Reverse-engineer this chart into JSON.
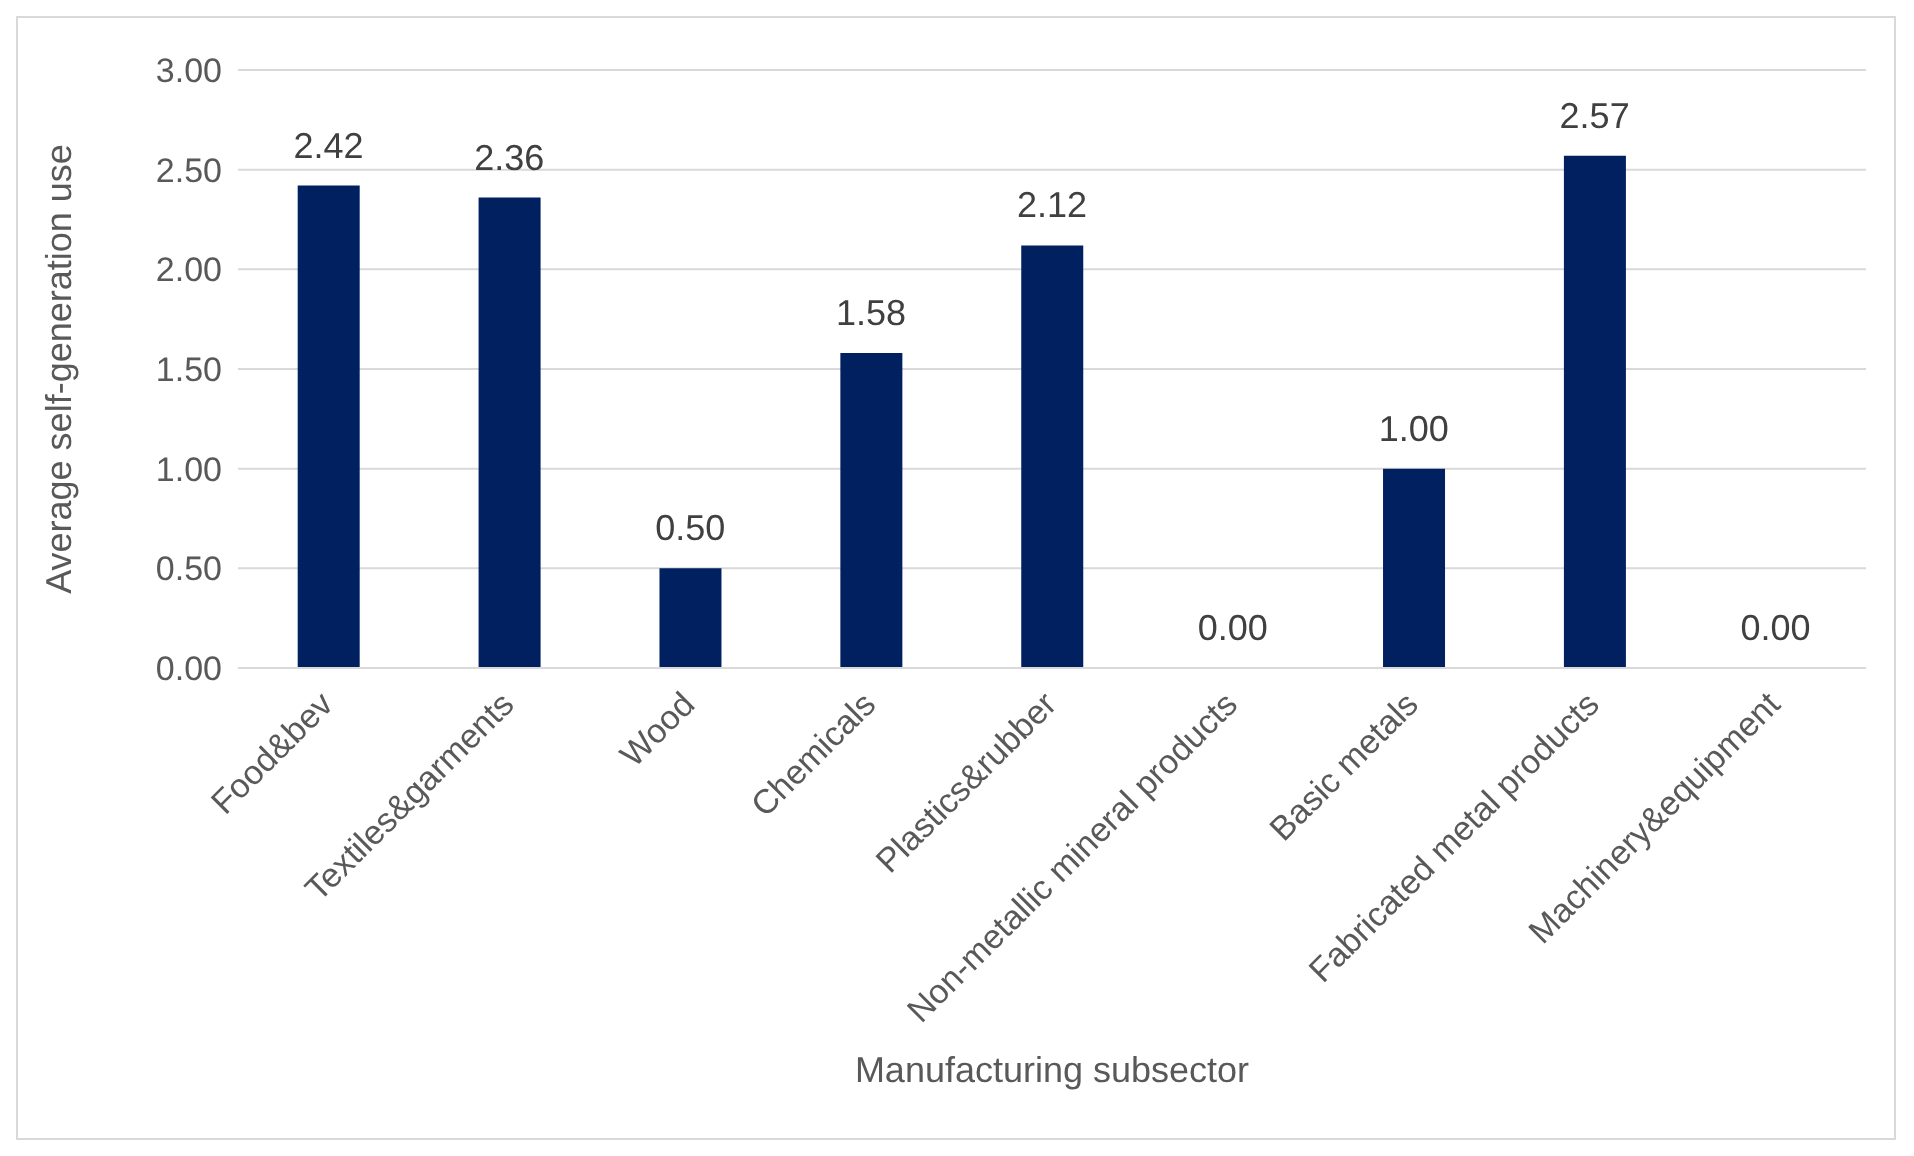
{
  "chart_data": {
    "type": "bar",
    "xlabel": "Manufacturing subsector",
    "ylabel": "Average self-generation use",
    "categories": [
      "Food&bev",
      "Textiles&garments",
      "Wood",
      "Chemicals",
      "Plastics&rubber",
      "Non-metallic mineral products",
      "Basic metals",
      "Fabricated metal products",
      "Machinery&equipment"
    ],
    "values": [
      2.42,
      2.36,
      0.5,
      1.58,
      2.12,
      0,
      1,
      2.57,
      0
    ],
    "value_labels": [
      "2.42",
      "2.36",
      "0.50",
      "1.58",
      "2.12",
      "0.00",
      "1.00",
      "2.57",
      "0.00"
    ],
    "color": "#002060",
    "ylim": [
      0,
      3
    ],
    "yticks": [
      {
        "value": 0,
        "label": "0.00"
      },
      {
        "value": 0.5,
        "label": "0.50"
      },
      {
        "value": 1,
        "label": "1.00"
      },
      {
        "value": 1.5,
        "label": "1.50"
      },
      {
        "value": 2,
        "label": "2.00"
      },
      {
        "value": 2.5,
        "label": "2.50"
      },
      {
        "value": 3,
        "label": "3.00"
      }
    ],
    "grid": "y"
  }
}
